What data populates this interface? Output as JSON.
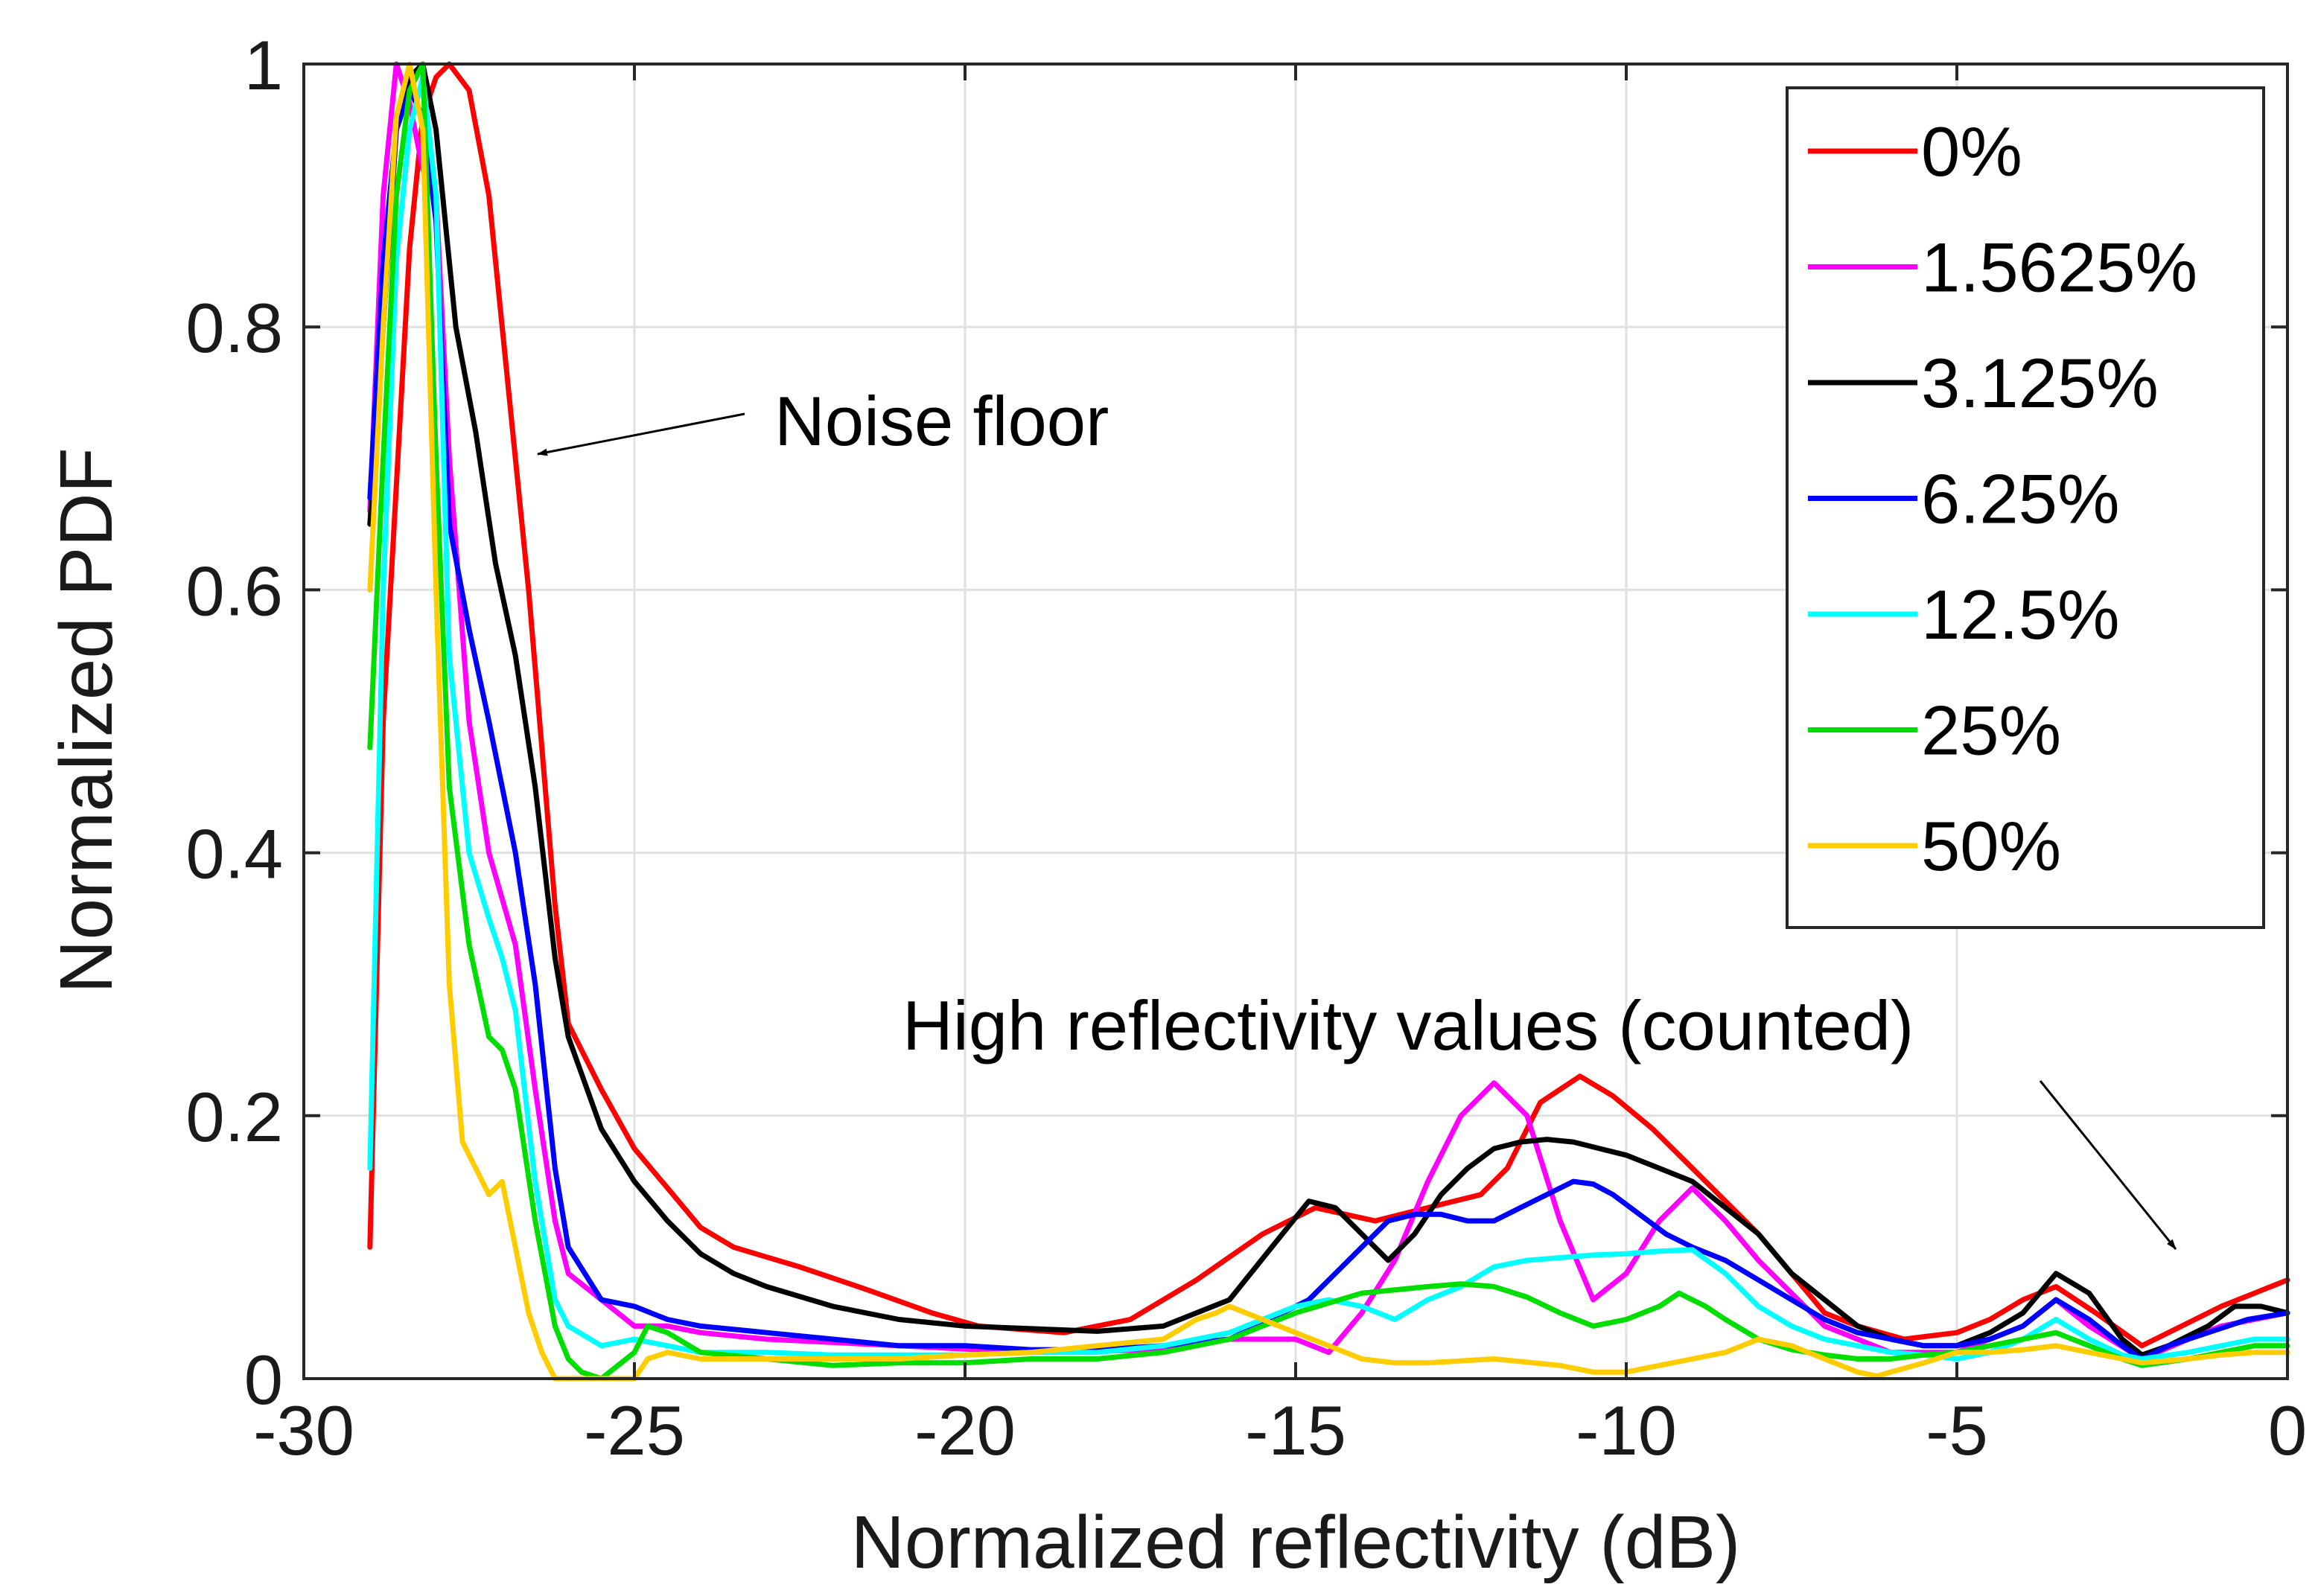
{
  "chart_data": {
    "type": "line",
    "title": "",
    "xlabel": "Normalized reflectivity (dB)",
    "ylabel": "Normalized PDF",
    "xlim": [
      -30,
      0
    ],
    "ylim": [
      0,
      1
    ],
    "xticks": [
      -30,
      -25,
      -20,
      -15,
      -10,
      -5,
      0
    ],
    "xtick_labels": [
      "-30",
      "-25",
      "-20",
      "-15",
      "-10",
      "-5",
      "0"
    ],
    "yticks": [
      0,
      0.2,
      0.4,
      0.6,
      0.8,
      1
    ],
    "ytick_labels": [
      "0",
      "0.2",
      "0.4",
      "0.6",
      "0.8",
      "1"
    ],
    "grid": true,
    "legend_position": "top-right",
    "annotations": [
      {
        "text": "Noise floor",
        "points_to": [
          -26.2,
          0.7
        ]
      },
      {
        "text": "High reflectivity values (counted)",
        "points_to": [
          -1.5,
          0.1
        ]
      }
    ],
    "series": [
      {
        "name": "0%",
        "color": "#ff0000",
        "x": [
          -29,
          -28.8,
          -28.4,
          -28.2,
          -28,
          -27.8,
          -27.5,
          -27.2,
          -27,
          -26.6,
          -26.4,
          -26.2,
          -26,
          -25.5,
          -25,
          -24.5,
          -24,
          -23.5,
          -22.5,
          -21.5,
          -20.5,
          -19.8,
          -18.5,
          -17.5,
          -16.5,
          -15.5,
          -14.7,
          -13.8,
          -13,
          -12.2,
          -11.8,
          -11.3,
          -10.7,
          -10.2,
          -9.6,
          -9,
          -8.5,
          -8,
          -7.5,
          -7,
          -6.5,
          -5.8,
          -5,
          -4.5,
          -4,
          -3.5,
          -2.9,
          -2.2,
          -1.6,
          -1,
          -0.5,
          0
        ],
        "y": [
          0.1,
          0.5,
          0.86,
          0.96,
          0.99,
          1.0,
          0.98,
          0.9,
          0.8,
          0.6,
          0.48,
          0.36,
          0.27,
          0.22,
          0.175,
          0.145,
          0.115,
          0.1,
          0.085,
          0.068,
          0.05,
          0.04,
          0.035,
          0.045,
          0.075,
          0.11,
          0.13,
          0.12,
          0.13,
          0.14,
          0.16,
          0.21,
          0.23,
          0.215,
          0.19,
          0.16,
          0.135,
          0.11,
          0.08,
          0.05,
          0.04,
          0.03,
          0.035,
          0.045,
          0.06,
          0.07,
          0.05,
          0.025,
          0.04,
          0.055,
          0.065,
          0.075
        ]
      },
      {
        "name": "1.5625%",
        "color": "#ff00ff",
        "x": [
          -29,
          -28.8,
          -28.6,
          -28.4,
          -28.2,
          -28,
          -27.8,
          -27.5,
          -27.2,
          -26.8,
          -26.5,
          -26.2,
          -26,
          -25.5,
          -25,
          -24.5,
          -24,
          -23,
          -21,
          -19,
          -17,
          -16,
          -15,
          -14.5,
          -14,
          -13.5,
          -13,
          -12.5,
          -12,
          -11.5,
          -11,
          -10.5,
          -10,
          -9.5,
          -9,
          -8.5,
          -8,
          -7,
          -6,
          -5,
          -4.5,
          -4,
          -3.5,
          -3,
          -2.2,
          -1.5,
          -1,
          -0.5,
          0
        ],
        "y": [
          0.66,
          0.9,
          1.0,
          0.97,
          0.92,
          0.9,
          0.7,
          0.5,
          0.4,
          0.33,
          0.22,
          0.12,
          0.08,
          0.06,
          0.04,
          0.04,
          0.035,
          0.03,
          0.025,
          0.02,
          0.022,
          0.03,
          0.03,
          0.02,
          0.05,
          0.09,
          0.15,
          0.2,
          0.225,
          0.2,
          0.12,
          0.06,
          0.08,
          0.12,
          0.145,
          0.12,
          0.09,
          0.04,
          0.02,
          0.02,
          0.03,
          0.04,
          0.06,
          0.04,
          0.015,
          0.03,
          0.04,
          0.045,
          0.05
        ]
      },
      {
        "name": "3.125%",
        "color": "#000000",
        "x": [
          -29,
          -28.8,
          -28.6,
          -28.4,
          -28.2,
          -28,
          -27.7,
          -27.4,
          -27.1,
          -26.8,
          -26.5,
          -26.2,
          -26,
          -25.5,
          -25,
          -24.5,
          -24,
          -23.5,
          -23,
          -22,
          -21,
          -20,
          -19,
          -18,
          -17,
          -16,
          -15.2,
          -14.8,
          -14.4,
          -14,
          -13.6,
          -13.2,
          -12.8,
          -12.4,
          -12,
          -11.6,
          -11.2,
          -10.8,
          -10.4,
          -10,
          -9.5,
          -9,
          -8.5,
          -8,
          -7.5,
          -7,
          -6.5,
          -6,
          -5.5,
          -5,
          -4.5,
          -4,
          -3.5,
          -3,
          -2.5,
          -2.2,
          -1.8,
          -1.2,
          -0.8,
          -0.4,
          0
        ],
        "y": [
          0.65,
          0.8,
          0.95,
          0.99,
          1.0,
          0.95,
          0.8,
          0.72,
          0.62,
          0.55,
          0.45,
          0.32,
          0.26,
          0.19,
          0.15,
          0.12,
          0.095,
          0.08,
          0.07,
          0.055,
          0.045,
          0.04,
          0.038,
          0.036,
          0.04,
          0.06,
          0.11,
          0.135,
          0.13,
          0.11,
          0.09,
          0.11,
          0.14,
          0.16,
          0.175,
          0.18,
          0.182,
          0.18,
          0.175,
          0.17,
          0.16,
          0.15,
          0.13,
          0.11,
          0.08,
          0.06,
          0.04,
          0.03,
          0.025,
          0.025,
          0.035,
          0.05,
          0.08,
          0.065,
          0.03,
          0.018,
          0.025,
          0.04,
          0.055,
          0.055,
          0.05
        ]
      },
      {
        "name": "6.25%",
        "color": "#0000ff",
        "x": [
          -29,
          -28.8,
          -28.6,
          -28.4,
          -28.2,
          -28,
          -27.8,
          -27.5,
          -27.2,
          -27,
          -26.8,
          -26.5,
          -26.2,
          -26,
          -25.5,
          -25,
          -24.5,
          -24,
          -23,
          -22,
          -21,
          -20,
          -19,
          -18,
          -17,
          -16,
          -15.2,
          -14.8,
          -14.4,
          -14,
          -13.6,
          -13.2,
          -12.8,
          -12.4,
          -12,
          -11.6,
          -11.2,
          -10.8,
          -10.5,
          -10.2,
          -9.8,
          -9.4,
          -9,
          -8.5,
          -8,
          -7.5,
          -7,
          -6.5,
          -6,
          -5.5,
          -5,
          -4.5,
          -4,
          -3.5,
          -3,
          -2.5,
          -2.2,
          -1.8,
          -1.2,
          -0.6,
          0
        ],
        "y": [
          0.67,
          0.85,
          0.95,
          0.98,
          0.96,
          0.88,
          0.65,
          0.57,
          0.5,
          0.45,
          0.4,
          0.3,
          0.16,
          0.1,
          0.06,
          0.055,
          0.045,
          0.04,
          0.035,
          0.03,
          0.025,
          0.025,
          0.022,
          0.022,
          0.025,
          0.03,
          0.05,
          0.06,
          0.08,
          0.1,
          0.12,
          0.125,
          0.125,
          0.12,
          0.12,
          0.13,
          0.14,
          0.15,
          0.148,
          0.14,
          0.125,
          0.11,
          0.1,
          0.09,
          0.075,
          0.06,
          0.045,
          0.035,
          0.03,
          0.025,
          0.025,
          0.03,
          0.04,
          0.06,
          0.045,
          0.025,
          0.015,
          0.025,
          0.035,
          0.045,
          0.05
        ]
      },
      {
        "name": "12.5%",
        "color": "#00ffff",
        "x": [
          -29,
          -28.8,
          -28.6,
          -28.4,
          -28.2,
          -28,
          -27.8,
          -27.5,
          -27.2,
          -27,
          -26.8,
          -26.5,
          -26.2,
          -26,
          -25.5,
          -25,
          -24.5,
          -24,
          -23,
          -22,
          -21,
          -20,
          -19,
          -18,
          -17,
          -16,
          -15.5,
          -15,
          -14.5,
          -14,
          -13.5,
          -13,
          -12.5,
          -12,
          -11.5,
          -11,
          -10.5,
          -10,
          -9.5,
          -9,
          -8.5,
          -8,
          -7.5,
          -7,
          -6.5,
          -6,
          -5.5,
          -5,
          -4.5,
          -4,
          -3.5,
          -3,
          -2.5,
          -2.2,
          -1.5,
          -1,
          -0.5,
          0
        ],
        "y": [
          0.16,
          0.6,
          0.85,
          0.95,
          0.99,
          0.9,
          0.55,
          0.4,
          0.35,
          0.32,
          0.28,
          0.15,
          0.06,
          0.04,
          0.025,
          0.03,
          0.025,
          0.02,
          0.02,
          0.018,
          0.018,
          0.018,
          0.02,
          0.02,
          0.025,
          0.035,
          0.045,
          0.055,
          0.06,
          0.055,
          0.045,
          0.06,
          0.07,
          0.085,
          0.09,
          0.092,
          0.094,
          0.095,
          0.097,
          0.098,
          0.08,
          0.055,
          0.04,
          0.03,
          0.025,
          0.02,
          0.018,
          0.015,
          0.02,
          0.03,
          0.045,
          0.03,
          0.018,
          0.015,
          0.02,
          0.025,
          0.03,
          0.03
        ]
      },
      {
        "name": "25%",
        "color": "#00dd00",
        "x": [
          -29,
          -28.8,
          -28.6,
          -28.4,
          -28.2,
          -28,
          -27.8,
          -27.5,
          -27.2,
          -27,
          -26.8,
          -26.5,
          -26.2,
          -26,
          -25.8,
          -25.5,
          -25,
          -24.8,
          -24.5,
          -24,
          -23,
          -22,
          -21,
          -20,
          -19,
          -18,
          -17,
          -16,
          -15.5,
          -15,
          -14,
          -13,
          -12.5,
          -12,
          -11.5,
          -11,
          -10.5,
          -10,
          -9.5,
          -9.2,
          -8.8,
          -8.5,
          -8,
          -7.5,
          -7,
          -6.5,
          -6,
          -5.5,
          -5,
          -4.5,
          -4,
          -3.5,
          -3,
          -2.5,
          -2.2,
          -1.5,
          -1,
          -0.5,
          0
        ],
        "y": [
          0.48,
          0.7,
          0.9,
          0.98,
          1.0,
          0.7,
          0.45,
          0.33,
          0.26,
          0.25,
          0.22,
          0.12,
          0.04,
          0.015,
          0.005,
          0.0,
          0.02,
          0.04,
          0.035,
          0.02,
          0.015,
          0.01,
          0.012,
          0.012,
          0.015,
          0.015,
          0.02,
          0.03,
          0.04,
          0.05,
          0.065,
          0.07,
          0.072,
          0.07,
          0.062,
          0.05,
          0.04,
          0.045,
          0.055,
          0.065,
          0.055,
          0.045,
          0.03,
          0.022,
          0.018,
          0.015,
          0.015,
          0.018,
          0.02,
          0.025,
          0.03,
          0.035,
          0.025,
          0.015,
          0.01,
          0.015,
          0.02,
          0.025,
          0.025
        ]
      },
      {
        "name": "50%",
        "color": "#ffcc00",
        "x": [
          -29,
          -28.8,
          -28.6,
          -28.4,
          -28.2,
          -28,
          -27.8,
          -27.6,
          -27.4,
          -27.2,
          -27,
          -26.8,
          -26.6,
          -26.4,
          -26.2,
          -26,
          -25.5,
          -25,
          -24.8,
          -24.5,
          -24,
          -23,
          -22,
          -21,
          -20,
          -19,
          -18,
          -17,
          -16.5,
          -16.2,
          -16,
          -15.5,
          -15,
          -14.5,
          -14,
          -13.5,
          -13,
          -12,
          -11,
          -10.5,
          -10,
          -9.5,
          -9,
          -8.5,
          -8,
          -7.5,
          -7,
          -6.5,
          -6.2,
          -6,
          -5.5,
          -5,
          -4.5,
          -4,
          -3.5,
          -3,
          -2.5,
          -2.2,
          -1.5,
          -1,
          -0.5,
          0
        ],
        "y": [
          0.6,
          0.8,
          0.96,
          1.0,
          0.95,
          0.6,
          0.3,
          0.18,
          0.16,
          0.14,
          0.15,
          0.1,
          0.05,
          0.02,
          0.0,
          0.0,
          0.0,
          0.0,
          0.015,
          0.02,
          0.015,
          0.015,
          0.015,
          0.015,
          0.018,
          0.02,
          0.025,
          0.03,
          0.045,
          0.05,
          0.055,
          0.045,
          0.035,
          0.025,
          0.015,
          0.012,
          0.012,
          0.015,
          0.01,
          0.005,
          0.005,
          0.01,
          0.015,
          0.02,
          0.03,
          0.025,
          0.015,
          0.005,
          0.002,
          0.005,
          0.012,
          0.02,
          0.02,
          0.022,
          0.025,
          0.02,
          0.015,
          0.012,
          0.015,
          0.018,
          0.02,
          0.02
        ]
      }
    ]
  }
}
